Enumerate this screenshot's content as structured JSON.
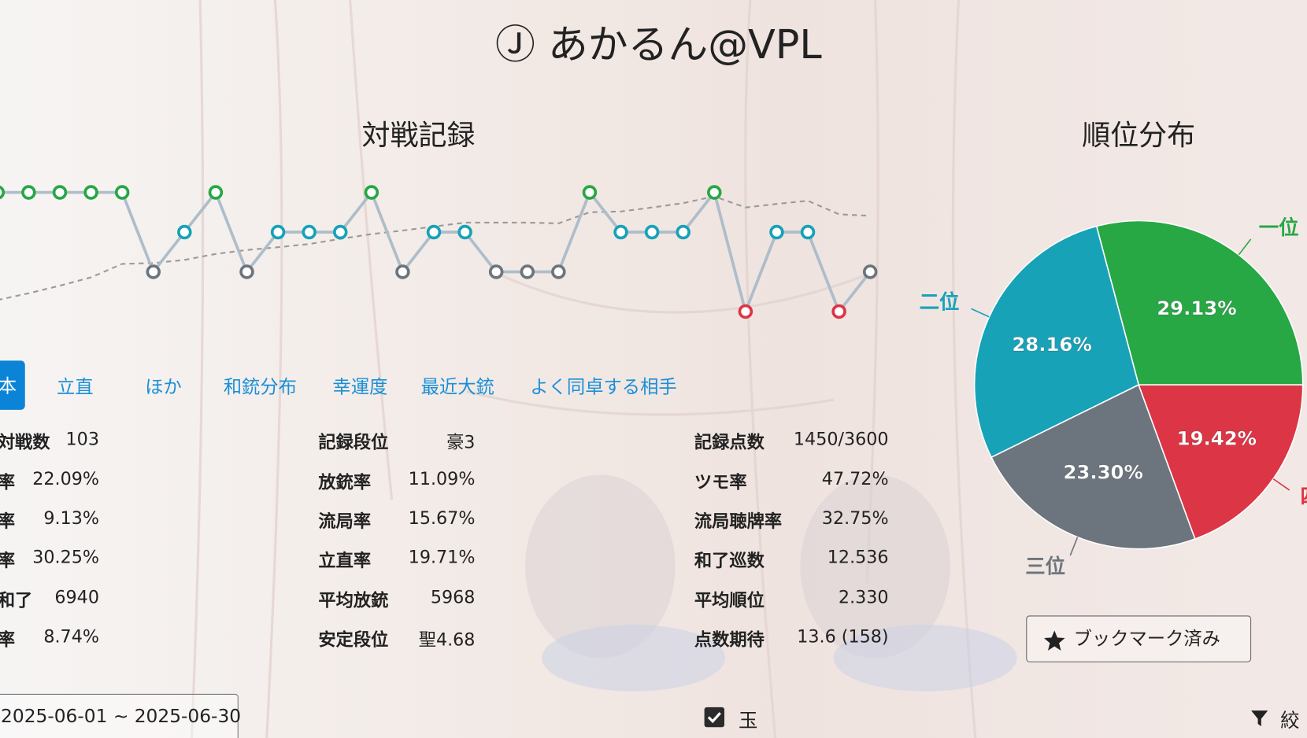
{
  "header": {
    "title": "Ⓙ あかるん@VPL"
  },
  "chart_data": [
    {
      "type": "line",
      "title": "対戦記録",
      "ylim": [
        4,
        1
      ],
      "rank_colors": [
        "#28a745",
        "#17a2b8",
        "#6c757d",
        "#dc3545"
      ],
      "series": [
        {
          "color": "#aebdca",
          "values": [
            1,
            1,
            1,
            1,
            1,
            3,
            2,
            1,
            3,
            2,
            2,
            2,
            1,
            3,
            2,
            2,
            3,
            3,
            3,
            1,
            2,
            2,
            2,
            1,
            4,
            2,
            2,
            4,
            3
          ]
        },
        {
          "color": "#9a9a9a",
          "dashed": true,
          "values": [
            3.71,
            3.54,
            3.35,
            3.14,
            2.8,
            2.78,
            2.7,
            2.55,
            2.45,
            2.38,
            2.3,
            2.17,
            2.05,
            1.96,
            1.86,
            1.76,
            1.76,
            1.76,
            1.78,
            1.5,
            1.48,
            1.38,
            1.27,
            1.1,
            1.38,
            1.29,
            1.21,
            1.55,
            1.59
          ]
        }
      ]
    },
    {
      "type": "pie",
      "title": "順位分布",
      "categories": [
        "一位",
        "二位",
        "三位",
        "四位"
      ],
      "values": [
        29.13,
        28.16,
        23.3,
        19.42
      ],
      "value_labels": [
        "29.13%",
        "28.16%",
        "23.30%",
        "19.42%"
      ],
      "colors": [
        "#28a745",
        "#17a2b8",
        "#6c757d",
        "#dc3545"
      ]
    }
  ],
  "tabs": [
    "本",
    "立直",
    "ほか",
    "和銃分布",
    "幸運度",
    "最近大銃",
    "よく同卓する相手"
  ],
  "stats": [
    [
      {
        "label": "対戦数",
        "value": "103"
      },
      {
        "label": "率",
        "value": "22.09%"
      },
      {
        "label": "率",
        "value": "9.13%"
      },
      {
        "label": "率",
        "value": "30.25%"
      },
      {
        "label": "和了",
        "value": "6940"
      },
      {
        "label": "率",
        "value": "8.74%"
      }
    ],
    [
      {
        "label": "記録段位",
        "value": "豪3"
      },
      {
        "label": "放銃率",
        "value": "11.09%"
      },
      {
        "label": "流局率",
        "value": "15.67%"
      },
      {
        "label": "立直率",
        "value": "19.71%"
      },
      {
        "label": "平均放銃",
        "value": "5968"
      },
      {
        "label": "安定段位",
        "value": "聖4.68"
      }
    ],
    [
      {
        "label": "記録点数",
        "value": "1450/3600"
      },
      {
        "label": "ツモ率",
        "value": "47.72%"
      },
      {
        "label": "流局聴牌率",
        "value": "32.75%"
      },
      {
        "label": "和了巡数",
        "value": "12.536"
      },
      {
        "label": "平均順位",
        "value": "2.330"
      },
      {
        "label": "点数期待",
        "value": "13.6 (158)"
      }
    ]
  ],
  "bookmark": "ブックマーク済み",
  "date_range": "2025-06-01 ~ 2025-06-30",
  "checkbox_label": "玉",
  "filter_label": "絞"
}
